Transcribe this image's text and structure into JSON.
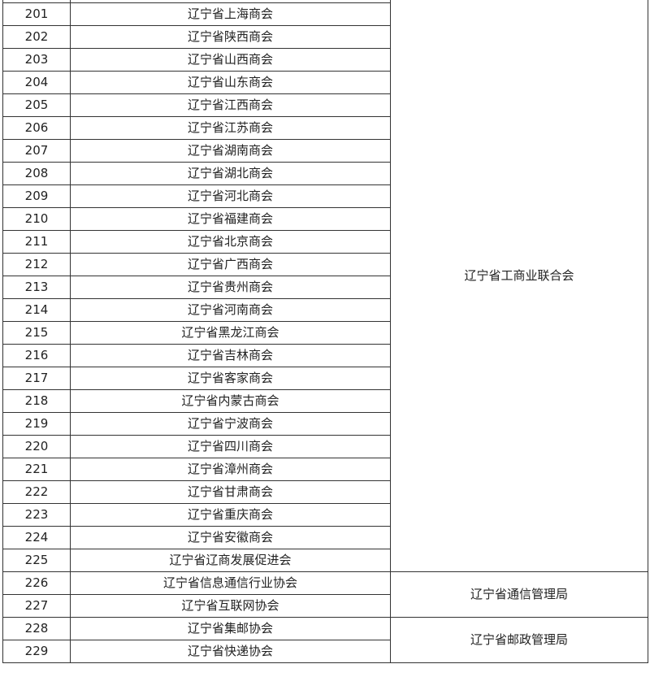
{
  "rows": [
    {
      "no": "201",
      "name": "辽宁省上海商会"
    },
    {
      "no": "202",
      "name": "辽宁省陕西商会"
    },
    {
      "no": "203",
      "name": "辽宁省山西商会"
    },
    {
      "no": "204",
      "name": "辽宁省山东商会"
    },
    {
      "no": "205",
      "name": "辽宁省江西商会"
    },
    {
      "no": "206",
      "name": "辽宁省江苏商会"
    },
    {
      "no": "207",
      "name": "辽宁省湖南商会"
    },
    {
      "no": "208",
      "name": "辽宁省湖北商会"
    },
    {
      "no": "209",
      "name": "辽宁省河北商会"
    },
    {
      "no": "210",
      "name": "辽宁省福建商会"
    },
    {
      "no": "211",
      "name": "辽宁省北京商会"
    },
    {
      "no": "212",
      "name": "辽宁省广西商会"
    },
    {
      "no": "213",
      "name": "辽宁省贵州商会"
    },
    {
      "no": "214",
      "name": "辽宁省河南商会"
    },
    {
      "no": "215",
      "name": "辽宁省黑龙江商会"
    },
    {
      "no": "216",
      "name": "辽宁省吉林商会"
    },
    {
      "no": "217",
      "name": "辽宁省客家商会"
    },
    {
      "no": "218",
      "name": "辽宁省内蒙古商会"
    },
    {
      "no": "219",
      "name": "辽宁省宁波商会"
    },
    {
      "no": "220",
      "name": "辽宁省四川商会"
    },
    {
      "no": "221",
      "name": "辽宁省漳州商会"
    },
    {
      "no": "222",
      "name": "辽宁省甘肃商会"
    },
    {
      "no": "223",
      "name": "辽宁省重庆商会"
    },
    {
      "no": "224",
      "name": "辽宁省安徽商会"
    },
    {
      "no": "225",
      "name": "辽宁省辽商发展促进会"
    },
    {
      "no": "226",
      "name": "辽宁省信息通信行业协会"
    },
    {
      "no": "227",
      "name": "辽宁省互联网协会"
    },
    {
      "no": "228",
      "name": "辽宁省集邮协会"
    },
    {
      "no": "229",
      "name": "辽宁省快递协会"
    }
  ],
  "groups": [
    {
      "supervisor": "辽宁省工商业联合会",
      "start": 0,
      "span": 25
    },
    {
      "supervisor": "辽宁省通信管理局",
      "start": 25,
      "span": 2
    },
    {
      "supervisor": "辽宁省邮政管理局",
      "start": 27,
      "span": 2
    }
  ]
}
